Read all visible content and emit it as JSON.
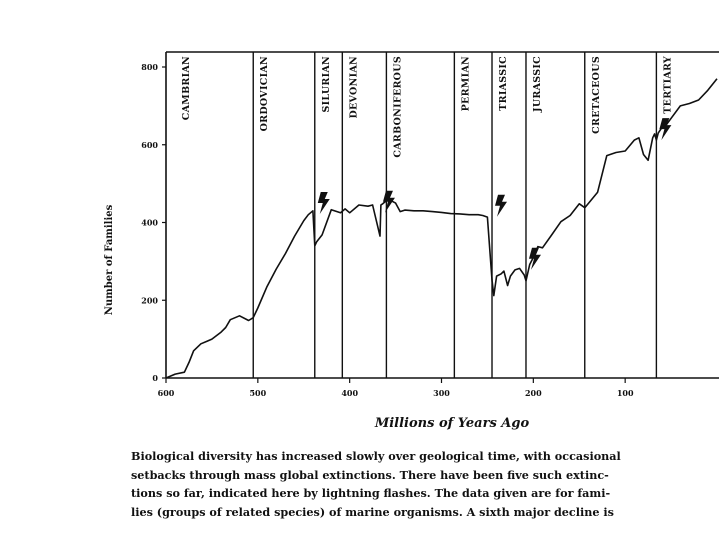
{
  "chart_data": {
    "type": "line",
    "title": "",
    "xlabel": "Millions of Years Ago",
    "ylabel": "Number of Families",
    "xlim": [
      600,
      0
    ],
    "ylim": [
      0,
      800
    ],
    "xticks": [
      "600",
      "500",
      "400",
      "300",
      "200",
      "100"
    ],
    "yticks": [
      "0",
      "200",
      "400",
      "600",
      "800"
    ],
    "periods": [
      {
        "label": "CAMBRIAN",
        "boundary_mya": 590
      },
      {
        "label": "ORDOVICIAN",
        "boundary_mya": 505
      },
      {
        "label": "SILURIAN",
        "boundary_mya": 438
      },
      {
        "label": "DEVONIAN",
        "boundary_mya": 408
      },
      {
        "label": "CARBONIFEROUS",
        "boundary_mya": 360
      },
      {
        "label": "PERMIAN",
        "boundary_mya": 286
      },
      {
        "label": "TRIASSIC",
        "boundary_mya": 245
      },
      {
        "label": "JURASSIC",
        "boundary_mya": 208
      },
      {
        "label": "CRETACEOUS",
        "boundary_mya": 144
      },
      {
        "label": "TERTIARY",
        "boundary_mya": 66
      }
    ],
    "extinctions_mya": [
      438,
      367,
      245,
      208,
      66
    ],
    "series": [
      {
        "x": [
          600,
          590,
          580,
          575,
          570,
          562,
          555,
          550,
          540,
          535,
          530,
          520,
          510,
          505,
          500,
          490,
          480,
          470,
          460,
          450,
          445,
          440,
          438,
          436,
          430,
          420,
          410,
          405,
          400,
          390,
          380,
          375,
          367,
          366,
          364,
          358,
          350,
          345,
          340,
          330,
          320,
          310,
          300,
          290,
          280,
          270,
          260,
          255,
          250,
          245,
          243,
          240,
          235,
          232,
          228,
          225,
          220,
          215,
          210,
          208,
          204,
          200,
          195,
          190,
          180,
          170,
          160,
          150,
          144,
          138,
          130,
          120,
          110,
          100,
          90,
          85,
          80,
          75,
          70,
          68,
          66,
          64,
          60,
          55,
          50,
          40,
          30,
          20,
          10,
          5,
          0
        ],
        "y": [
          0,
          10,
          15,
          40,
          70,
          88,
          95,
          100,
          118,
          130,
          150,
          160,
          148,
          155,
          180,
          235,
          280,
          320,
          365,
          405,
          420,
          430,
          340,
          350,
          368,
          433,
          425,
          435,
          425,
          445,
          442,
          445,
          365,
          445,
          448,
          460,
          450,
          428,
          432,
          430,
          430,
          428,
          426,
          423,
          422,
          420,
          420,
          418,
          414,
          252,
          212,
          262,
          268,
          275,
          238,
          262,
          278,
          282,
          265,
          250,
          292,
          310,
          338,
          335,
          368,
          402,
          418,
          448,
          438,
          455,
          478,
          572,
          580,
          584,
          612,
          618,
          575,
          560,
          618,
          628,
          612,
          630,
          644,
          652,
          668,
          700,
          706,
          715,
          740,
          755,
          770
        ]
      }
    ]
  },
  "caption": {
    "line1": "Biological diversity has increased slowly over geological time, with occasional",
    "line2": "setbacks through mass global extinctions. There have been five such extinc-",
    "line3": "tions so far, indicated here by lightning flashes. The data given are for fami-",
    "line4": "lies (groups of related species) of marine organisms. A sixth major decline is"
  }
}
